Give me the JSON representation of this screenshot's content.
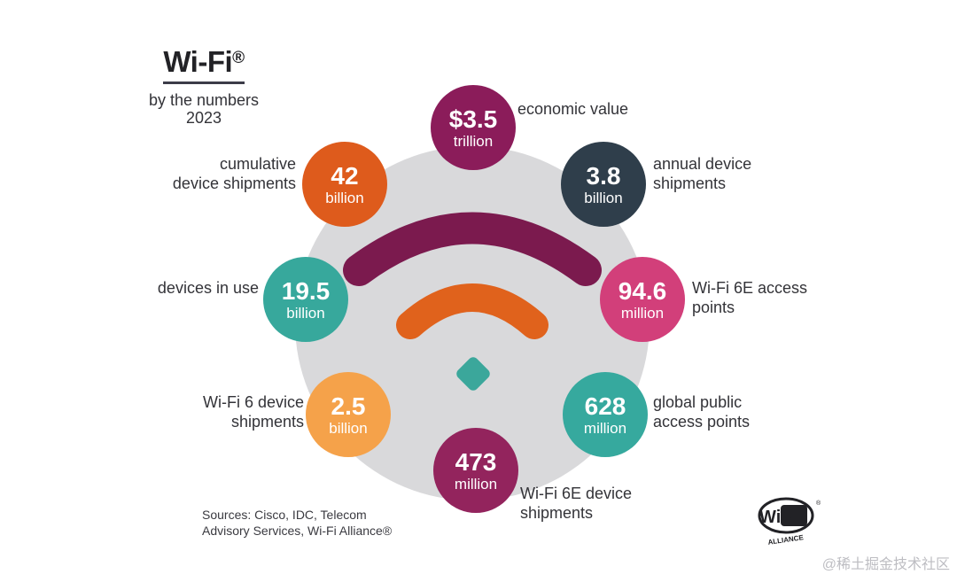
{
  "header": {
    "title": "Wi-Fi",
    "title_mark": "®",
    "subtitle_line1": "by the numbers",
    "subtitle_line2": "2023"
  },
  "stats": [
    {
      "key": "economic",
      "value": "$3.5",
      "unit": "trillion",
      "label_lines": [
        "economic value"
      ],
      "color": "#8b1c5a"
    },
    {
      "key": "annual",
      "value": "3.8",
      "unit": "billion",
      "label_lines": [
        "annual device",
        "shipments"
      ],
      "color": "#2f3e4b"
    },
    {
      "key": "wifi6e-ap",
      "value": "94.6",
      "unit": "million",
      "label_lines": [
        "Wi-Fi 6E access",
        "points"
      ],
      "color": "#d23f7a"
    },
    {
      "key": "public-ap",
      "value": "628",
      "unit": "million",
      "label_lines": [
        "global public",
        "access points"
      ],
      "color": "#36a99e"
    },
    {
      "key": "wifi6e-ship",
      "value": "473",
      "unit": "million",
      "label_lines": [
        "Wi-Fi 6E device",
        "shipments"
      ],
      "color": "#93245d"
    },
    {
      "key": "wifi6-ship",
      "value": "2.5",
      "unit": "billion",
      "label_lines": [
        "Wi-Fi 6 device",
        "shipments"
      ],
      "color": "#f5a24a"
    },
    {
      "key": "in-use",
      "value": "19.5",
      "unit": "billion",
      "label_lines": [
        "devices in use"
      ],
      "color": "#37a89c"
    },
    {
      "key": "cumulative",
      "value": "42",
      "unit": "billion",
      "label_lines": [
        "cumulative",
        "device shipments"
      ],
      "color": "#de5b1c"
    }
  ],
  "sources_line1": "Sources: Cisco, IDC, Telecom",
  "sources_line2": "Advisory Services, Wi-Fi Alliance®",
  "logo": {
    "text": "WiFi",
    "subtext": "ALLIANCE",
    "mark": "®"
  },
  "watermark": "@稀土掘金技术社区",
  "colors": {
    "backdrop": "#d9d9db",
    "arc_outer": "#7b1a4e",
    "arc_inner": "#e0621c",
    "dot": "#3ba79b"
  }
}
